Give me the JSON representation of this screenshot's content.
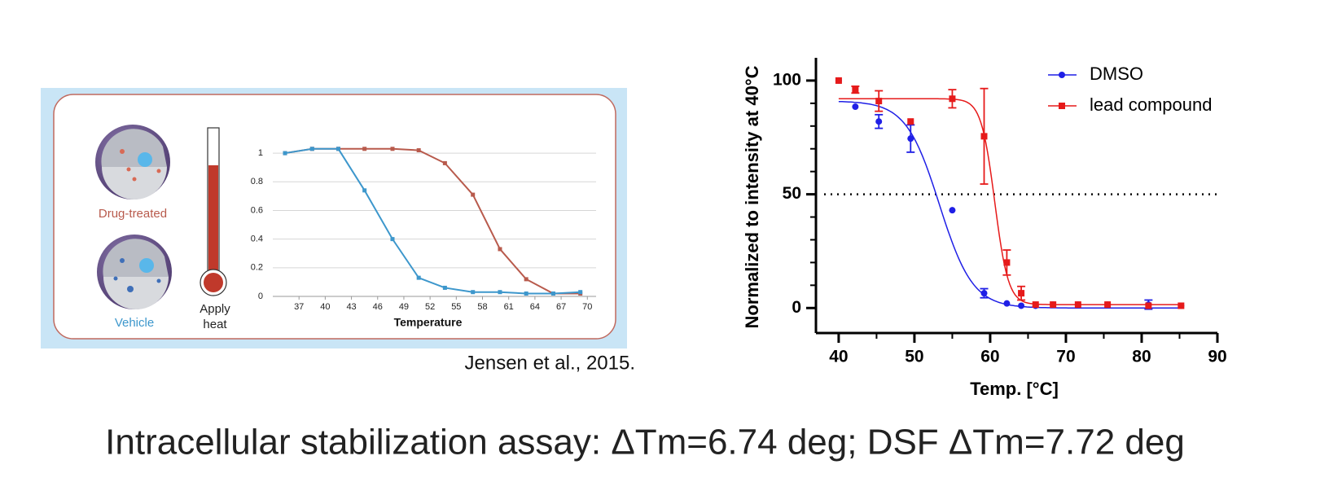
{
  "citation": "Jensen et al., 2015.",
  "caption": "Intracellular stabilization assay:  ΔTm=6.74 deg; DSF ΔTm=7.72 deg",
  "illustration": {
    "apply_heat": [
      "Apply",
      "heat"
    ]
  },
  "chart_data": [
    {
      "type": "line",
      "x_label": "Temperature",
      "x": [
        35.4,
        38.5,
        41.5,
        44.5,
        47.7,
        50.7,
        53.7,
        56.9,
        60,
        63,
        66.1,
        69.2
      ],
      "xlim": [
        34,
        71
      ],
      "xticks": [
        37,
        40,
        43,
        46,
        49,
        52,
        55,
        58,
        61,
        64,
        67,
        70
      ],
      "ylim": [
        0,
        1.08
      ],
      "yticks": [
        0,
        0.2,
        0.4,
        0.6,
        0.8,
        1
      ],
      "grid": true,
      "series": [
        {
          "name": "Drug-treated",
          "color": "#b85a4c",
          "values": [
            1.0,
            1.03,
            1.03,
            1.03,
            1.03,
            1.02,
            0.93,
            0.71,
            0.33,
            0.12,
            0.02,
            0.02
          ]
        },
        {
          "name": "Vehicle",
          "color": "#3d97cc",
          "values": [
            1.0,
            1.03,
            1.03,
            0.74,
            0.4,
            0.13,
            0.06,
            0.03,
            0.03,
            0.02,
            0.02,
            0.03
          ]
        }
      ]
    },
    {
      "type": "scatter",
      "x_label": "Temp. [°C]",
      "y_label": "Normalized to intensity at 40°C",
      "xlim": [
        37,
        90
      ],
      "xticks": [
        40,
        50,
        60,
        70,
        80,
        90
      ],
      "ylim": [
        -11,
        110
      ],
      "yticks": [
        0,
        50,
        100
      ],
      "reference_line": 50,
      "legend": "upper right",
      "series": [
        {
          "name": "DMSO",
          "color": "#1f1fe6",
          "marker": "circle",
          "x": [
            40,
            42.2,
            45.3,
            49.5,
            55,
            59.2,
            62.2,
            64.1,
            66,
            68.3,
            71.6,
            75.5,
            80.9,
            85.2
          ],
          "values": [
            100,
            88.5,
            82,
            74.5,
            43,
            6.5,
            2,
            1,
            1,
            1.5,
            1.5,
            1.5,
            1.5,
            1
          ],
          "errors": [
            null,
            null,
            3,
            6,
            null,
            2,
            null,
            null,
            null,
            null,
            null,
            null,
            2,
            null
          ],
          "fit": {
            "top": 91,
            "bottom": 0,
            "tm": 53.3,
            "slope": 2.2
          }
        },
        {
          "name": "lead compound",
          "color": "#e61a1a",
          "marker": "square",
          "x": [
            40,
            42.2,
            45.3,
            49.5,
            55,
            59.2,
            62.2,
            64.1,
            66,
            68.3,
            71.6,
            75.5,
            80.9,
            85.2
          ],
          "values": [
            100,
            96,
            91,
            82,
            92,
            75.5,
            20,
            6.5,
            1.5,
            1.5,
            1.5,
            1.5,
            1,
            1
          ],
          "errors": [
            null,
            1.5,
            4.5,
            null,
            4,
            21,
            5.5,
            3,
            null,
            null,
            null,
            null,
            null,
            null
          ],
          "fit": {
            "top": 92,
            "bottom": 1.5,
            "tm": 60.6,
            "slope": 0.9
          }
        }
      ]
    }
  ]
}
